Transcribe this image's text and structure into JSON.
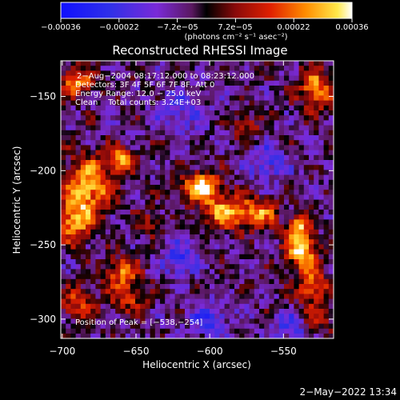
{
  "chart_data": {
    "type": "heatmap",
    "title": "Reconstructed RHESSI Image",
    "xlabel": "Heliocentric X (arcsec)",
    "ylabel": "Heliocentric Y (arcsec)",
    "xlim": [
      -701,
      -516
    ],
    "ylim": [
      -313,
      -126
    ],
    "xticks": [
      -700,
      -650,
      -600,
      -550
    ],
    "yticks": [
      -150,
      -200,
      -250,
      -300
    ],
    "xtick_labels": [
      "−700",
      "−650",
      "−600",
      "−550"
    ],
    "ytick_labels": [
      "−150",
      "−200",
      "−250",
      "−300"
    ],
    "colorbar": {
      "range": [
        -0.00036,
        0.00036
      ],
      "tick_labels": [
        "−0.00036",
        "−0.00022",
        "−7.2e−05",
        "7.2e−05",
        "0.00022",
        "0.00036"
      ],
      "unit_label": "(photons cm⁻² s⁻¹ asec⁻²)"
    },
    "annotations": [
      "2−Aug−2004 08:17:12.000 to 08:23:12.000",
      "Detectors: 3F 4F 5F 6F 7F 8F, Att 0",
      "Energy Range: 12.0 − 25.0 keV",
      "Clean    Total counts: 3.24E+03"
    ],
    "peak_label": "Position of Peak = [−538,−254]",
    "peak": [
      -538,
      -254
    ],
    "total_counts": 3240,
    "image_sources": [
      {
        "x": -606,
        "y": -211,
        "sx": 9,
        "sy": 7,
        "amp": 0.0004
      },
      {
        "x": -588,
        "y": -228,
        "sx": 11,
        "sy": 8,
        "amp": 0.00032
      },
      {
        "x": -565,
        "y": -228,
        "sx": 8,
        "sy": 7,
        "amp": 0.00024
      },
      {
        "x": -538,
        "y": -254,
        "sx": 7,
        "sy": 7,
        "amp": 0.00042
      },
      {
        "x": -540,
        "y": -238,
        "sx": 6,
        "sy": 6,
        "amp": 0.00032
      },
      {
        "x": -530,
        "y": -278,
        "sx": 8,
        "sy": 9,
        "amp": 0.00026
      },
      {
        "x": -682,
        "y": -210,
        "sx": 12,
        "sy": 14,
        "amp": 0.00034
      },
      {
        "x": -692,
        "y": -235,
        "sx": 8,
        "sy": 10,
        "amp": 0.0003
      },
      {
        "x": -660,
        "y": -192,
        "sx": 7,
        "sy": 6,
        "amp": 0.00028
      },
      {
        "x": -690,
        "y": -140,
        "sx": 8,
        "sy": 7,
        "amp": 0.00028
      },
      {
        "x": -528,
        "y": -145,
        "sx": 8,
        "sy": 10,
        "amp": 0.0003
      },
      {
        "x": -660,
        "y": -268,
        "sx": 8,
        "sy": 7,
        "amp": 0.00026
      },
      {
        "x": -655,
        "y": -285,
        "sx": 9,
        "sy": 7,
        "amp": 0.0002
      },
      {
        "x": -690,
        "y": -290,
        "sx": 8,
        "sy": 8,
        "amp": 0.0002
      },
      {
        "x": -640,
        "y": -235,
        "sx": 6,
        "sy": 6,
        "amp": 0.00018
      },
      {
        "x": -575,
        "y": -170,
        "sx": 7,
        "sy": 6,
        "amp": 0.00016
      },
      {
        "x": -525,
        "y": -300,
        "sx": 7,
        "sy": 6,
        "amp": 0.00016
      },
      {
        "x": -620,
        "y": -260,
        "sx": 8,
        "sy": 8,
        "amp": -0.0002
      },
      {
        "x": -600,
        "y": -300,
        "sx": 10,
        "sy": 8,
        "amp": -0.00018
      },
      {
        "x": -560,
        "y": -195,
        "sx": 9,
        "sy": 9,
        "amp": -0.00016
      },
      {
        "x": -620,
        "y": -160,
        "sx": 12,
        "sy": 10,
        "amp": -0.00014
      },
      {
        "x": -545,
        "y": -305,
        "sx": 8,
        "sy": 6,
        "amp": -0.00016
      }
    ]
  },
  "footer": {
    "timestamp": "2−May−2022 13:34"
  }
}
